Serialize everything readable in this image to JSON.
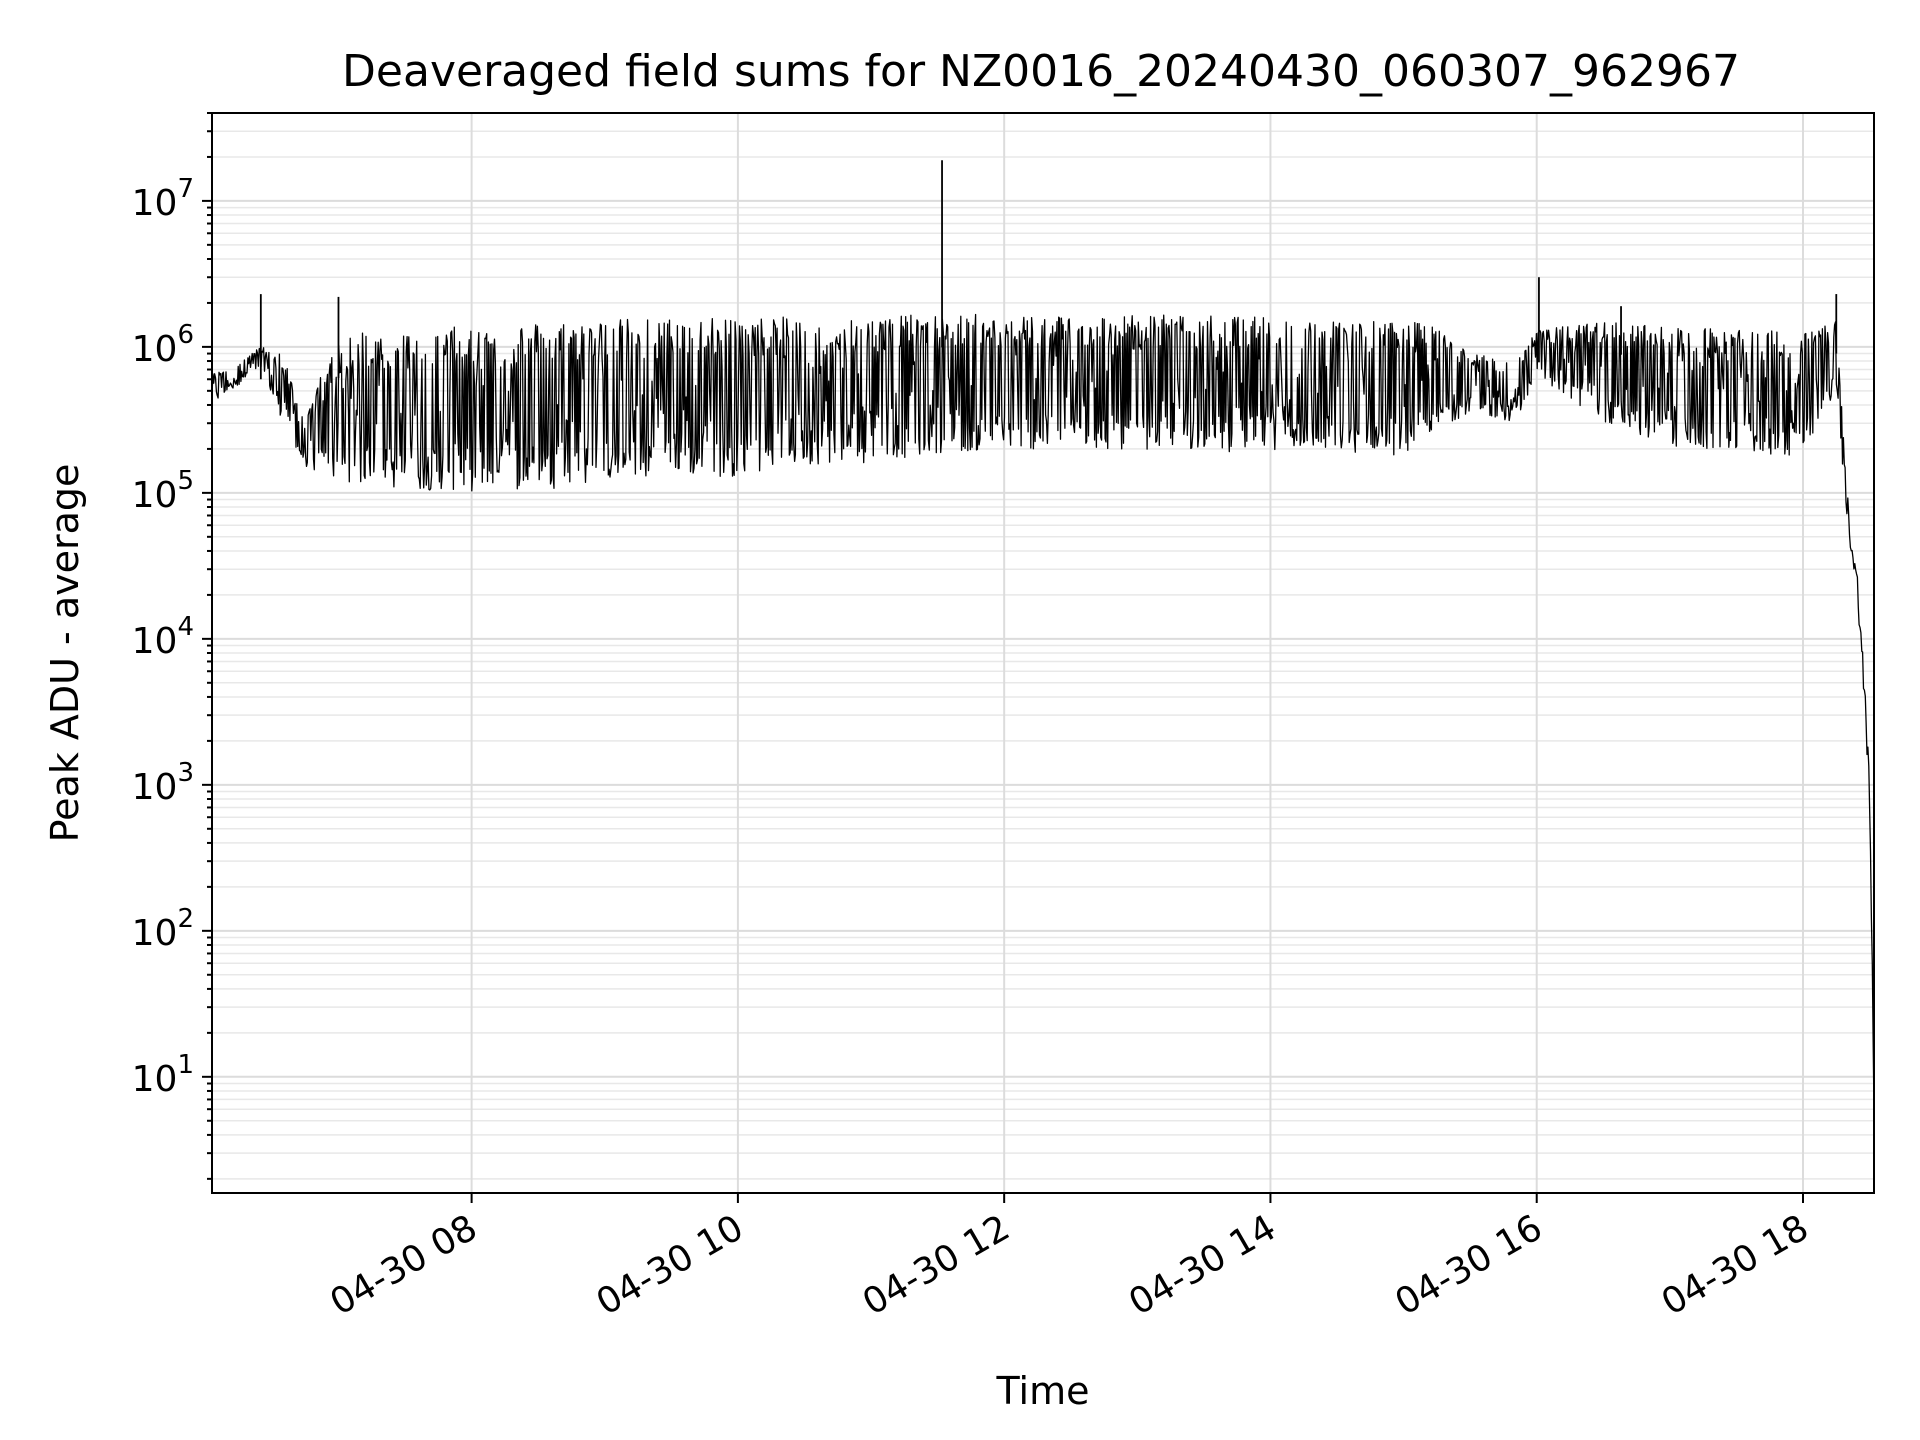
{
  "chart_data": {
    "type": "line",
    "title": "Deaveraged field sums for NZ0016_20240430_060307_962967",
    "xlabel": "Time",
    "ylabel": "Peak ADU - average",
    "yscale": "log",
    "ylim": [
      1.6,
      40000000
    ],
    "xlim": [
      "04-30 06:03",
      "04-30 18:32"
    ],
    "grid": true,
    "legend": "none",
    "line_color": "#000000",
    "x_ticks": [
      "04-30 08",
      "04-30 10",
      "04-30 12",
      "04-30 14",
      "04-30 16",
      "04-30 18"
    ],
    "y_ticks": [
      {
        "base": "10",
        "exp": "1",
        "value": 10
      },
      {
        "base": "10",
        "exp": "2",
        "value": 100
      },
      {
        "base": "10",
        "exp": "3",
        "value": 1000
      },
      {
        "base": "10",
        "exp": "4",
        "value": 10000
      },
      {
        "base": "10",
        "exp": "5",
        "value": 100000
      },
      {
        "base": "10",
        "exp": "6",
        "value": 1000000
      },
      {
        "base": "10",
        "exp": "7",
        "value": 10000000
      }
    ],
    "series": [
      {
        "x": [
          "04-30 06:03",
          "04-30 06:15",
          "04-30 06:25",
          "04-30 06:35",
          "04-30 06:45",
          "04-30 06:55",
          "04-30 07:10",
          "04-30 07:30",
          "04-30 08:00",
          "04-30 08:30",
          "04-30 09:00",
          "04-30 09:30",
          "04-30 10:00",
          "04-30 10:30",
          "04-30 11:00",
          "04-30 11:30",
          "04-30 12:00",
          "04-30 12:30",
          "04-30 13:00",
          "04-30 13:30",
          "04-30 14:00",
          "04-30 14:30",
          "04-30 15:00",
          "04-30 15:20",
          "04-30 15:30",
          "04-30 15:50",
          "04-30 16:00",
          "04-30 16:30",
          "04-30 17:00",
          "04-30 17:30",
          "04-30 18:00",
          "04-30 18:15",
          "04-30 18:20",
          "04-30 18:25",
          "04-30 18:30",
          "04-30 18:32"
        ],
        "low": [
          400000,
          550000,
          700000,
          300000,
          150000,
          120000,
          110000,
          100000,
          100000,
          105000,
          115000,
          120000,
          130000,
          150000,
          160000,
          180000,
          190000,
          190000,
          190000,
          190000,
          190000,
          185000,
          180000,
          300000,
          350000,
          300000,
          600000,
          300000,
          200000,
          180000,
          170000,
          500000,
          60000,
          15000,
          700,
          3
        ],
        "high": [
          650000,
          800000,
          1000000,
          900000,
          300000,
          900000,
          1300000,
          1300000,
          1400000,
          1500000,
          1550000,
          1600000,
          1600000,
          1600000,
          1650000,
          1650000,
          1700000,
          1700000,
          1650000,
          1650000,
          1600000,
          1550000,
          1500000,
          1400000,
          900000,
          800000,
          1300000,
          1500000,
          1400000,
          1300000,
          1300000,
          1500000,
          100000,
          25000,
          1500,
          10
        ]
      }
    ],
    "spikes": [
      {
        "x": "04-30 06:25",
        "y": 2300000
      },
      {
        "x": "04-30 07:00",
        "y": 2200000
      },
      {
        "x": "04-30 11:32",
        "y": 19000000
      },
      {
        "x": "04-30 16:01",
        "y": 3000000
      },
      {
        "x": "04-30 16:38",
        "y": 1900000
      },
      {
        "x": "04-30 18:15",
        "y": 2300000
      }
    ]
  }
}
